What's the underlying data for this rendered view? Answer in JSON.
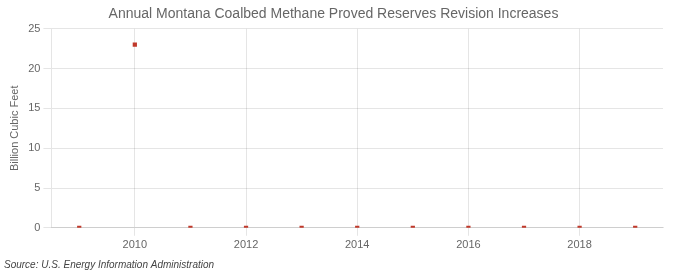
{
  "chart_data": {
    "type": "scatter",
    "title": "Annual Montana Coalbed Methane Proved Reserves Revision Increases",
    "ylabel": "Billion Cubic Feet",
    "annotation": "Source: U.S. Energy Information Administration",
    "x": [
      2009,
      2010,
      2011,
      2012,
      2013,
      2014,
      2015,
      2016,
      2017,
      2018,
      2019
    ],
    "values": [
      0,
      23,
      0,
      0,
      0,
      0,
      0,
      0,
      0,
      0,
      0
    ],
    "color": "#c0392b",
    "marker": "square",
    "xlim": [
      2008.5,
      2019.5
    ],
    "ylim": [
      0,
      25
    ],
    "xticks": [
      2010,
      2012,
      2014,
      2016,
      2018
    ],
    "yticks": [
      0,
      5,
      10,
      15,
      20,
      25
    ],
    "grid": true
  }
}
